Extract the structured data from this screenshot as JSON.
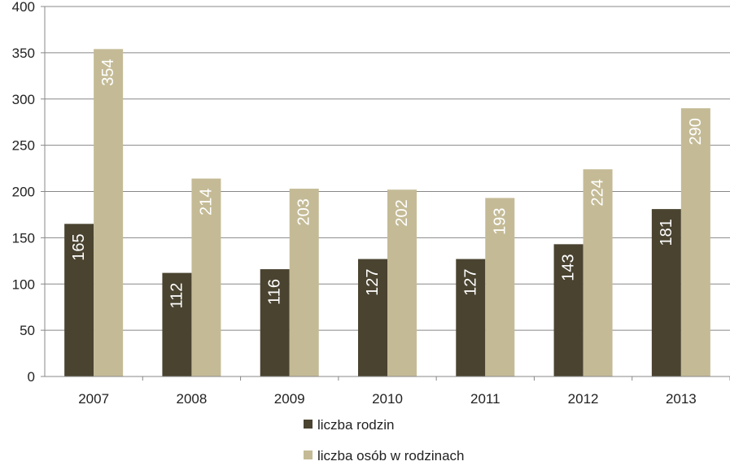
{
  "chart_data": {
    "type": "bar",
    "categories": [
      "2007",
      "2008",
      "2009",
      "2010",
      "2011",
      "2012",
      "2013"
    ],
    "series": [
      {
        "name": "liczba rodzin",
        "values": [
          165,
          112,
          116,
          127,
          127,
          143,
          181
        ],
        "color": "#4a4330"
      },
      {
        "name": "liczba osób w rodzinach",
        "values": [
          354,
          214,
          203,
          202,
          193,
          224,
          290
        ],
        "color": "#c4bb96"
      }
    ],
    "ylim": [
      0,
      400
    ],
    "yticks": [
      0,
      50,
      100,
      150,
      200,
      250,
      300,
      350,
      400
    ],
    "grid": true,
    "legend_position": "bottom",
    "data_labels": "inside-rotated",
    "colors": {
      "grid": "#888888",
      "axis": "#888888",
      "data_label_text": "#ffffff"
    }
  }
}
